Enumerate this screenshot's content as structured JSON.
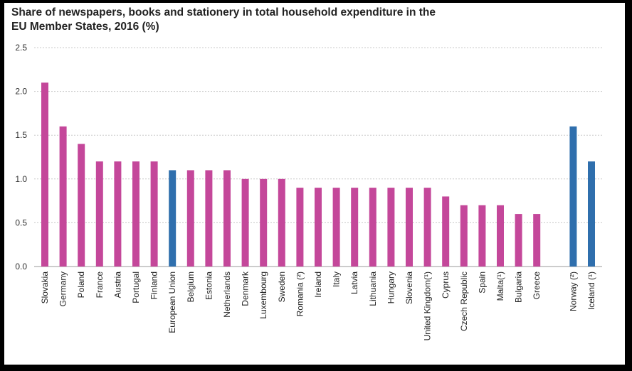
{
  "title": {
    "line1": "Share of newspapers, books and stationery in total household expenditure in the",
    "line2": "EU Member States, 2016 (%)"
  },
  "colors": {
    "member": "#c4479a",
    "aggregate": "#2f6fad",
    "grid": "#c8c8c8"
  },
  "chart_data": {
    "type": "bar",
    "title": "Share of newspapers, books and stationery in total household expenditure in the EU Member States, 2016 (%)",
    "xlabel": "",
    "ylabel": "",
    "ylim": [
      0,
      2.5
    ],
    "yticks": [
      "0.0",
      "0.5",
      "1.0",
      "1.5",
      "2.0",
      "2.5"
    ],
    "grid": true,
    "categories": [
      "Slovakia",
      "Germany",
      "Poland",
      "France",
      "Austria",
      "Portugal",
      "Finland",
      "European Union",
      "Belgium",
      "Estonia",
      "Netherlands",
      "Denmark",
      "Luxembourg",
      "Sweden",
      "Romania (²)",
      "Ireland",
      "Italy",
      "Latvia",
      "Lithuania",
      "Hungary",
      "Slovenia",
      "United Kingdom(¹)",
      "Cyprus",
      "Czech Republic",
      "Spain",
      "Malta(¹)",
      "Bulgaria",
      "Greece",
      "",
      "Norway (²)",
      "Iceland (¹)"
    ],
    "values": [
      2.1,
      1.6,
      1.4,
      1.2,
      1.2,
      1.2,
      1.2,
      1.1,
      1.1,
      1.1,
      1.1,
      1.0,
      1.0,
      1.0,
      0.9,
      0.9,
      0.9,
      0.9,
      0.9,
      0.9,
      0.9,
      0.9,
      0.8,
      0.7,
      0.7,
      0.7,
      0.6,
      0.6,
      null,
      1.6,
      1.2
    ],
    "highlight": [
      "European Union",
      "Norway (²)",
      "Iceland (¹)"
    ]
  }
}
